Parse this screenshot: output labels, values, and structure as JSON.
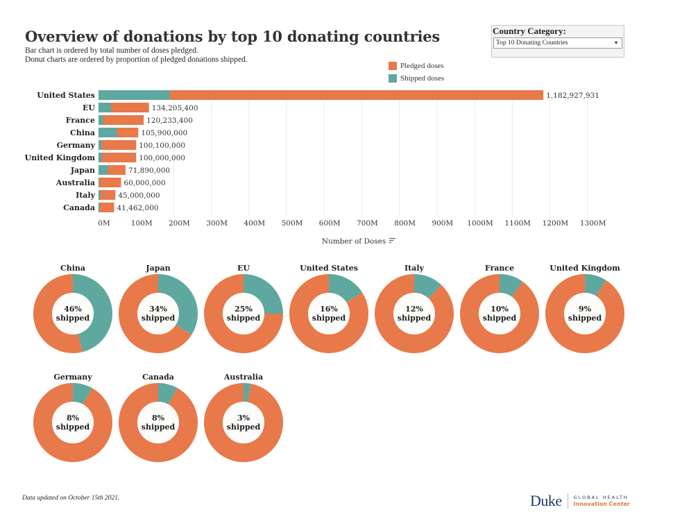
{
  "header": {
    "title": "Overview of donations by top 10 donating countries",
    "subtitle_line1": "Bar chart is ordered by total number of doses pledged.",
    "subtitle_line2": "Donut charts are ordered by proportion of pledged donations shipped."
  },
  "filter": {
    "label": "Country Category:",
    "selected": "Top 10 Donating Countries",
    "arrow_icon": "▾"
  },
  "colors": {
    "pledged": "#E8794A",
    "shipped": "#5FA8A0",
    "donut_center": "#FCFCFA",
    "gridline": "#EBEBEB"
  },
  "legend": [
    {
      "label": "Pledged doses",
      "key": "pledged"
    },
    {
      "label": "Shipped doses",
      "key": "shipped"
    }
  ],
  "footer": {
    "note": "Data updated on October 15th 2021.",
    "logo_main": "Duke",
    "logo_top": "GLOBAL HEALTH",
    "logo_bottom": "Innovation Center"
  },
  "chart_data": [
    {
      "type": "bar",
      "orientation": "horizontal",
      "stacked": true,
      "title": "Pledged vs shipped doses by country",
      "xlabel": "Number of Doses",
      "xlabel_icon": "sort-icon",
      "xlim": [
        0,
        1300000000
      ],
      "grid": true,
      "legend_position": "top-right",
      "x_ticks": [
        "0M",
        "100M",
        "200M",
        "300M",
        "400M",
        "500M",
        "600M",
        "700M",
        "800M",
        "900M",
        "1000M",
        "1100M",
        "1200M",
        "1300M"
      ],
      "categories": [
        "United States",
        "EU",
        "France",
        "China",
        "Germany",
        "United Kingdom",
        "Japan",
        "Australia",
        "Italy",
        "Canada"
      ],
      "series": [
        {
          "name": "Pledged doses",
          "values": [
            1182927931,
            134205400,
            120233400,
            105900000,
            100100000,
            100000000,
            71890000,
            60000000,
            45000000,
            41462000
          ]
        },
        {
          "name": "Shipped doses (share of pledged)",
          "values": [
            0.16,
            0.25,
            0.1,
            0.46,
            0.08,
            0.09,
            0.34,
            0.03,
            0.12,
            0.08
          ]
        }
      ],
      "data_labels": [
        "1,182,927,931",
        "134,205,400",
        "120,233,400",
        "105,900,000",
        "100,100,000",
        "100,000,000",
        "71,890,000",
        "60,000,000",
        "45,000,000",
        "41,462,000"
      ]
    },
    {
      "type": "pie",
      "variant": "donut",
      "title": "Proportion of pledged donations shipped",
      "center_suffix": "shipped",
      "items": [
        {
          "country": "China",
          "shipped_pct": 46,
          "label": "46%"
        },
        {
          "country": "Japan",
          "shipped_pct": 34,
          "label": "34%"
        },
        {
          "country": "EU",
          "shipped_pct": 25,
          "label": "25%"
        },
        {
          "country": "United States",
          "shipped_pct": 16,
          "label": "16%"
        },
        {
          "country": "Italy",
          "shipped_pct": 12,
          "label": "12%"
        },
        {
          "country": "France",
          "shipped_pct": 10,
          "label": "10%"
        },
        {
          "country": "United Kingdom",
          "shipped_pct": 9,
          "label": "9%"
        },
        {
          "country": "Germany",
          "shipped_pct": 8,
          "label": "8%"
        },
        {
          "country": "Canada",
          "shipped_pct": 8,
          "label": "8%"
        },
        {
          "country": "Australia",
          "shipped_pct": 3,
          "label": "3%"
        }
      ]
    }
  ]
}
